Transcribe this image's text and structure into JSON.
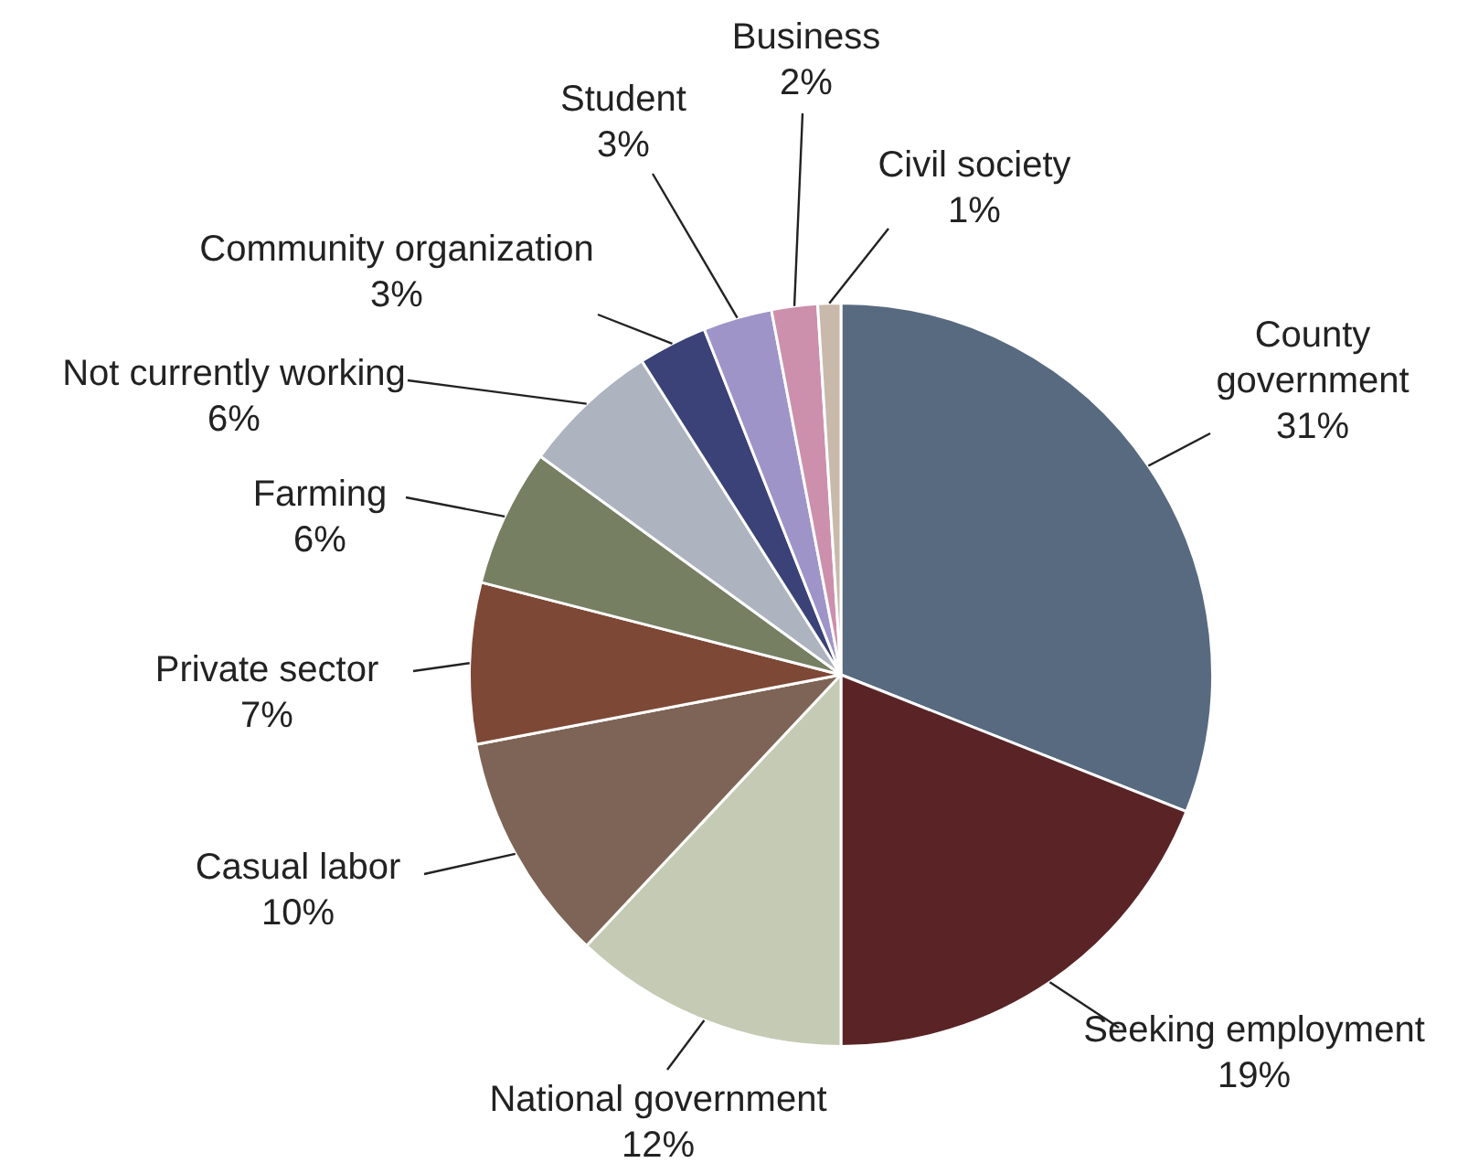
{
  "chart_data": {
    "type": "pie",
    "categories": [
      "County government",
      "Seeking employment",
      "National government",
      "Casual labor",
      "Private sector",
      "Farming",
      "Not currently working",
      "Community organization",
      "Student",
      "Business",
      "Civil society"
    ],
    "values": [
      31,
      19,
      12,
      10,
      7,
      6,
      6,
      3,
      3,
      2,
      1
    ],
    "value_labels": [
      "31%",
      "19%",
      "12%",
      "10%",
      "7%",
      "6%",
      "6%",
      "3%",
      "3%",
      "2%",
      "1%"
    ],
    "colors": [
      "#586a80",
      "#5a2427",
      "#c5cab4",
      "#7e6456",
      "#7e4836",
      "#767f62",
      "#adb3bf",
      "#3a4277",
      "#9f94c8",
      "#cc8fac",
      "#c9b9ab"
    ]
  }
}
